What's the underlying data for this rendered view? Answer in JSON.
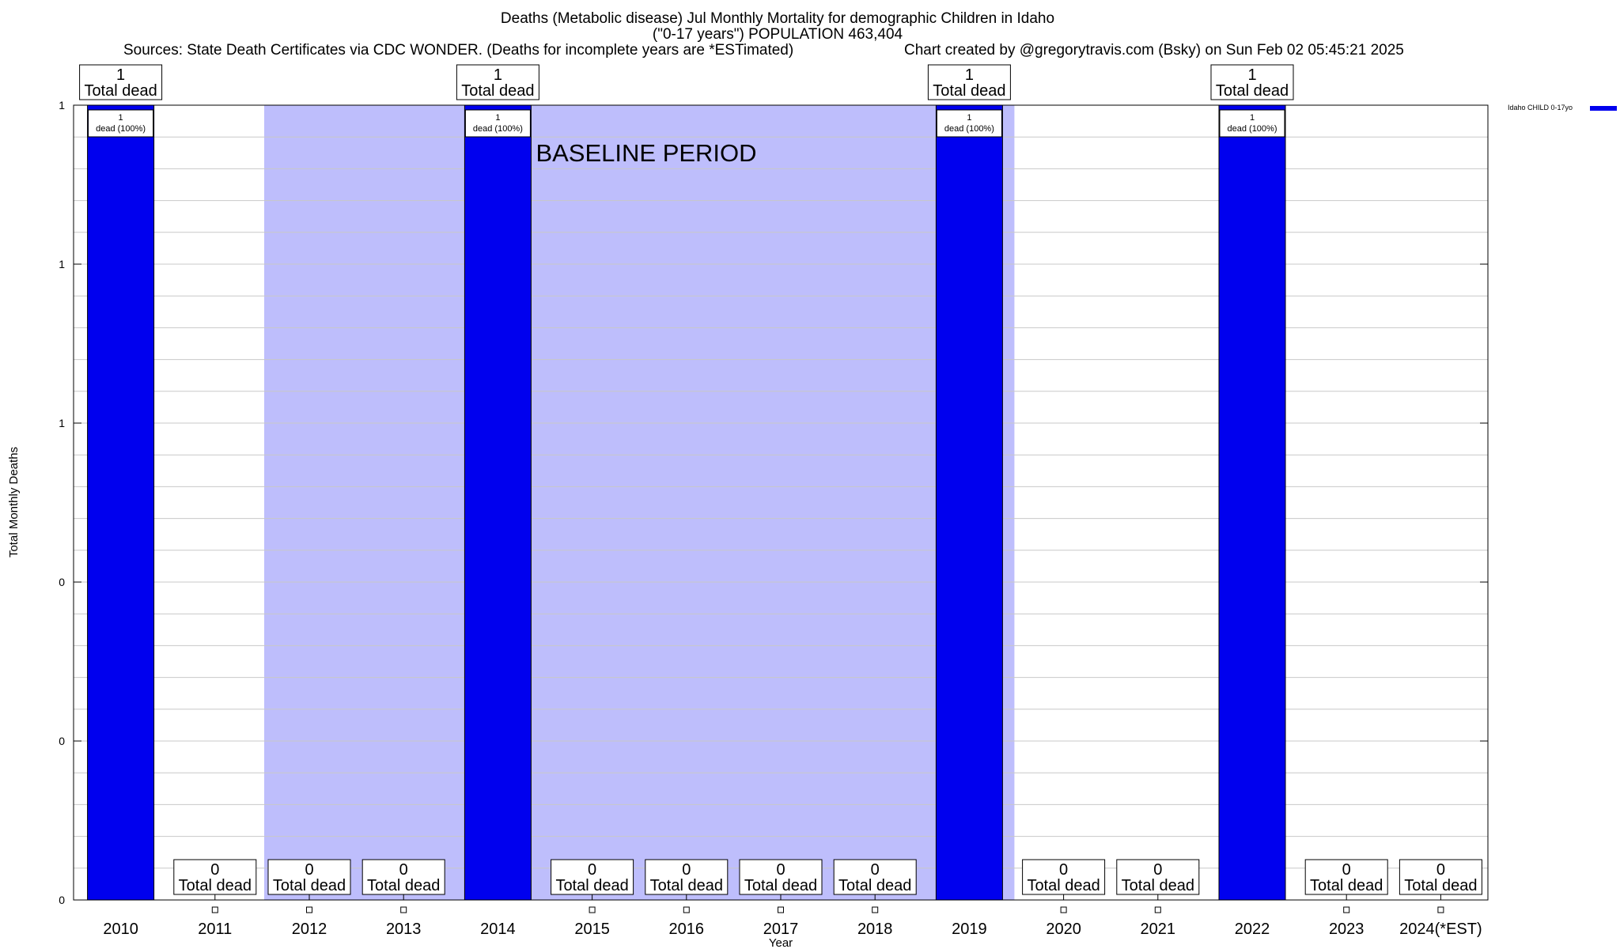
{
  "header": {
    "title_line1": "Deaths (Metabolic disease) Jul Monthly Mortality for demographic Children in Idaho",
    "title_line2": "(\"0-17 years\") POPULATION 463,404",
    "sources": "Sources: State Death Certificates via CDC WONDER. (Deaths for incomplete years are *ESTimated)",
    "credit": "Chart created by @gregorytravis.com (Bsky) on Sun Feb 02 05:45:21 2025"
  },
  "legend": {
    "label": "Idaho CHILD 0-17yo",
    "color": "#0000ee"
  },
  "chart_data": {
    "type": "bar",
    "categories": [
      "2010",
      "2011",
      "2012",
      "2013",
      "2014",
      "2015",
      "2016",
      "2017",
      "2018",
      "2019",
      "2020",
      "2021",
      "2022",
      "2023",
      "2024(*EST)"
    ],
    "series": [
      {
        "name": "Idaho CHILD 0-17yo",
        "values": [
          1,
          0,
          0,
          0,
          1,
          0,
          0,
          0,
          0,
          1,
          0,
          0,
          1,
          0,
          0
        ]
      }
    ],
    "xlabel": "Year",
    "ylabel": "Total Monthly Deaths",
    "ylim": [
      0,
      1
    ],
    "yticks": [
      "0",
      "0",
      "0",
      "1",
      "1",
      "1"
    ],
    "grid": true,
    "legend_position": "top-right",
    "bar_color": "#0000ee",
    "baseline": {
      "label": "BASELINE PERIOD",
      "start": "2012",
      "end": "2019",
      "color": "#bebefc"
    },
    "total_label_suffix": "Total dead",
    "bar_inner_label": "dead (100%)"
  }
}
